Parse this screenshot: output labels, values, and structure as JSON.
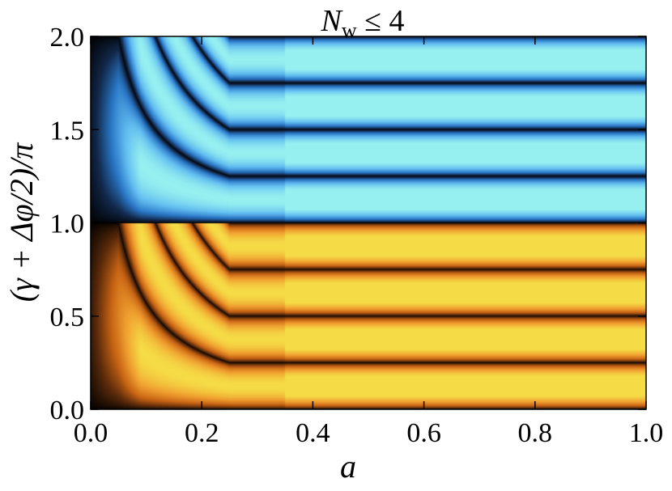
{
  "chart_data": {
    "type": "heatmap",
    "title": "N_w ≤ 4",
    "title_main": "N",
    "title_sub": "w",
    "title_rel": " ≤ 4",
    "xlabel": "a",
    "ylabel": "(γ + Δφ/2)/π",
    "xlim": [
      0.0,
      1.0
    ],
    "ylim": [
      0.0,
      2.0
    ],
    "xticks": [
      0.0,
      0.2,
      0.4,
      0.6,
      0.8,
      1.0
    ],
    "yticks": [
      0.0,
      0.5,
      1.0,
      1.5,
      2.0
    ],
    "xtick_labels": [
      "0.0",
      "0.2",
      "0.4",
      "0.6",
      "0.8",
      "1.0"
    ],
    "ytick_labels": [
      "0.0",
      "0.5",
      "1.0",
      "1.5",
      "2.0"
    ],
    "colormap": {
      "lower_half": [
        "#000000",
        "#5a2a0a",
        "#c86414",
        "#f0a030",
        "#f5dc46"
      ],
      "upper_half": [
        "#000000",
        "#12284a",
        "#2a78c8",
        "#64bef0",
        "#96f0f0"
      ]
    },
    "branch_point_a": 0.25,
    "branch_point_y": [
      0.1,
      1.1
    ],
    "band_centers": {
      "lower_half": [
        0.2,
        0.4,
        0.6,
        0.8
      ],
      "upper_half": [
        1.2,
        1.4,
        1.6,
        1.8
      ]
    },
    "grid": false,
    "legend": "none"
  }
}
